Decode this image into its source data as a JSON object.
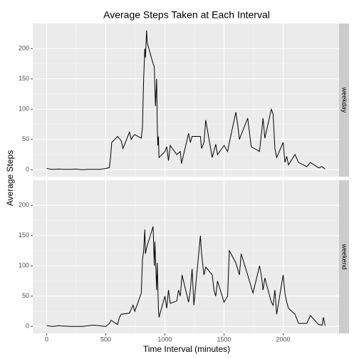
{
  "chart_data": {
    "type": "line",
    "title": "Average Steps Taken at Each Interval",
    "xlabel": "Time Interval (minutes)",
    "ylabel": "Average Steps",
    "color": "#000000",
    "grid": true,
    "xlim": [
      -117.75,
      2472.75
    ],
    "ylim": [
      -11.5,
      241.5
    ],
    "xticks": [
      0,
      500,
      1000,
      1500,
      2000
    ],
    "yticks": [
      0,
      50,
      100,
      150,
      200
    ],
    "panels": [
      {
        "label": "weekday",
        "x": [
          0,
          25,
          50,
          100,
          150,
          200,
          250,
          300,
          350,
          400,
          450,
          500,
          520,
          530,
          540,
          550,
          600,
          630,
          645,
          700,
          715,
          730,
          745,
          800,
          810,
          820,
          830,
          835,
          845,
          850,
          900,
          910,
          920,
          930,
          935,
          940,
          945,
          950,
          1000,
          1015,
          1030,
          1045,
          1100,
          1130,
          1140,
          1200,
          1215,
          1230,
          1300,
          1310,
          1330,
          1345,
          1400,
          1430,
          1445,
          1500,
          1530,
          1545,
          1600,
          1615,
          1630,
          1700,
          1730,
          1800,
          1830,
          1845,
          1900,
          1915,
          1930,
          1945,
          2000,
          2015,
          2030,
          2045,
          2100,
          2130,
          2200,
          2230,
          2300,
          2330,
          2355
        ],
        "values": [
          2,
          1,
          0.5,
          1,
          0.5,
          0.5,
          1,
          0,
          0.5,
          0.5,
          0.5,
          2,
          3,
          3,
          20,
          45,
          55,
          48,
          35,
          62,
          50,
          55,
          58,
          52,
          70,
          150,
          200,
          185,
          230,
          210,
          175,
          170,
          105,
          150,
          75,
          40,
          55,
          20,
          30,
          38,
          15,
          40,
          25,
          30,
          10,
          60,
          45,
          55,
          55,
          35,
          45,
          82,
          20,
          42,
          25,
          40,
          30,
          45,
          95,
          75,
          50,
          85,
          38,
          30,
          85,
          52,
          100,
          92,
          35,
          20,
          45,
          12,
          22,
          8,
          25,
          12,
          5,
          12,
          3,
          5,
          1
        ]
      },
      {
        "label": "weekend",
        "x": [
          0,
          50,
          100,
          200,
          300,
          400,
          500,
          530,
          545,
          600,
          615,
          630,
          700,
          730,
          745,
          800,
          810,
          820,
          830,
          835,
          845,
          900,
          910,
          915,
          930,
          935,
          945,
          950,
          1000,
          1015,
          1030,
          1045,
          1100,
          1115,
          1130,
          1145,
          1200,
          1215,
          1230,
          1245,
          1300,
          1310,
          1330,
          1345,
          1400,
          1415,
          1430,
          1445,
          1500,
          1530,
          1545,
          1600,
          1630,
          1645,
          1700,
          1715,
          1745,
          1800,
          1815,
          1830,
          1845,
          1900,
          1915,
          1930,
          1945,
          2000,
          2015,
          2030,
          2045,
          2100,
          2130,
          2200,
          2230,
          2300,
          2330,
          2340,
          2355
        ],
        "values": [
          1,
          0,
          1,
          0,
          0,
          2,
          0,
          5,
          10,
          3,
          15,
          20,
          22,
          35,
          25,
          55,
          110,
          125,
          160,
          120,
          130,
          165,
          100,
          140,
          60,
          105,
          30,
          15,
          50,
          30,
          60,
          38,
          42,
          60,
          50,
          85,
          40,
          60,
          95,
          35,
          150,
          120,
          85,
          98,
          85,
          60,
          50,
          75,
          40,
          50,
          125,
          105,
          85,
          120,
          85,
          75,
          55,
          100,
          85,
          60,
          80,
          40,
          35,
          60,
          20,
          85,
          55,
          40,
          30,
          20,
          5,
          5,
          18,
          3,
          2,
          15,
          1
        ]
      }
    ]
  }
}
